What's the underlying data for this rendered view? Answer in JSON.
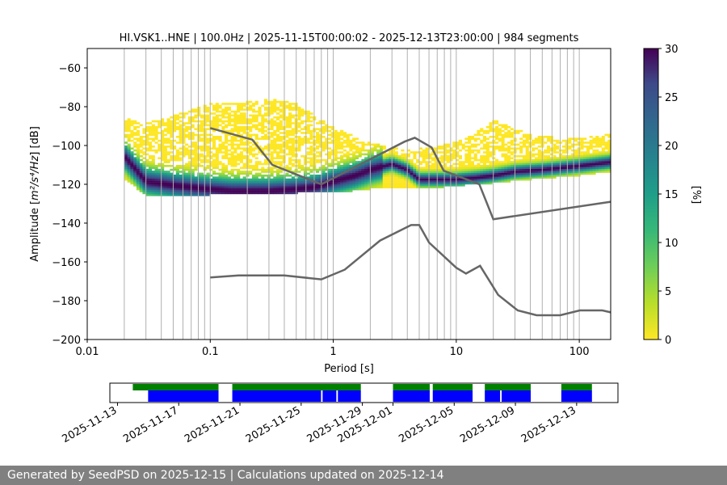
{
  "chart_data": {
    "type": "heatmap",
    "title": "HI.VSK1..HNE | 100.0Hz | 2025-11-15T00:00:02 - 2025-12-13T23:00:00 | 984 segments",
    "xlabel": "Period [s]",
    "ylabel_prefix": "Amplitude [",
    "ylabel_math": "m²/s⁴/Hz",
    "ylabel_suffix": "] [dB]",
    "x_scale": "log",
    "xlim": [
      0.01,
      180
    ],
    "ylim": [
      -200,
      -50
    ],
    "x_ticks": [
      0.01,
      0.1,
      1,
      10,
      100
    ],
    "x_tick_labels": [
      "0.01",
      "0.1",
      "1",
      "10",
      "100"
    ],
    "y_ticks": [
      -200,
      -180,
      -160,
      -140,
      -120,
      -100,
      -80,
      -60
    ],
    "y_tick_labels": [
      "−200",
      "−180",
      "−160",
      "−140",
      "−120",
      "−100",
      "−80",
      "−60"
    ],
    "grid": "vertical lines at period bins",
    "grid_periods": [
      0.02,
      0.03,
      0.04,
      0.05,
      0.06,
      0.07,
      0.08,
      0.09,
      0.1,
      0.2,
      0.3,
      0.4,
      0.5,
      0.6,
      0.7,
      0.8,
      0.9,
      1,
      2,
      3,
      4,
      5,
      6,
      7,
      8,
      9,
      10,
      20,
      30,
      40,
      50,
      60,
      70,
      80,
      90,
      100
    ],
    "colorbar": {
      "label": "[%]",
      "range": [
        0,
        30
      ],
      "ticks": [
        0,
        5,
        10,
        15,
        20,
        25,
        30
      ],
      "colormap": "viridis_r"
    },
    "mode_curve": {
      "x": [
        0.02,
        0.025,
        0.03,
        0.04,
        0.05,
        0.07,
        0.1,
        0.15,
        0.2,
        0.3,
        0.5,
        0.7,
        0.8,
        1,
        1.5,
        2,
        3,
        4,
        5,
        6,
        8,
        10,
        15,
        20,
        30,
        50,
        100,
        180
      ],
      "y": [
        -106,
        -113,
        -119,
        -120,
        -121,
        -122,
        -123,
        -124,
        -124,
        -124,
        -123,
        -122,
        -121,
        -119,
        -116,
        -113,
        -110,
        -113,
        -118,
        -118,
        -118,
        -118,
        -117,
        -116,
        -114,
        -113,
        -111,
        -109
      ]
    },
    "spread_upper": {
      "x": [
        0.02,
        0.03,
        0.05,
        0.1,
        0.2,
        0.3,
        0.5,
        1,
        2,
        4,
        8,
        12,
        20,
        40,
        100,
        180
      ],
      "y": [
        -87,
        -90,
        -86,
        -80,
        -79,
        -77,
        -80,
        -92,
        -100,
        -104,
        -101,
        -98,
        -88,
        -96,
        -98,
        -95
      ]
    },
    "spread_lower": {
      "x": [
        0.02,
        0.03,
        0.05,
        0.1,
        0.2,
        0.3,
        0.5,
        1,
        2,
        4,
        8,
        12,
        20,
        40,
        100,
        180
      ],
      "y": [
        -117,
        -125,
        -126,
        -125,
        -125,
        -125,
        -124,
        -124,
        -122,
        -122,
        -121,
        -120,
        -119,
        -117,
        -115,
        -113
      ]
    },
    "series": [
      {
        "style": "model",
        "x": [
          0.1,
          0.22,
          0.32,
          0.8,
          3.8,
          4.6,
          6.3,
          7.9,
          15.4,
          20,
          180
        ],
        "y": [
          -91,
          -97,
          -110,
          -120,
          -98,
          -96,
          -101,
          -113,
          -120,
          -138,
          -129
        ]
      },
      {
        "style": "model",
        "x": [
          0.1,
          0.17,
          0.4,
          0.8,
          1.24,
          2.4,
          4.3,
          5,
          6,
          10,
          12,
          15.6,
          21.9,
          31.6,
          45,
          70,
          101,
          154,
          180
        ],
        "y": [
          -168,
          -167,
          -167,
          -169,
          -164,
          -149,
          -141,
          -141,
          -150,
          -163,
          -166,
          -162,
          -177,
          -185,
          -187.5,
          -187.5,
          -185,
          -185,
          -186
        ]
      }
    ]
  },
  "timeline": {
    "date_labels": [
      "2025-11-13",
      "2025-11-17",
      "2025-11-21",
      "2025-11-25",
      "2025-11-29",
      "2025-12-01",
      "2025-12-05",
      "2025-12-09",
      "2025-12-13"
    ],
    "date_values": [
      "2025-11-13",
      "2025-11-17",
      "2025-11-21",
      "2025-11-25",
      "2025-11-29",
      "2025-12-01",
      "2025-12-05",
      "2025-12-09",
      "2025-12-13"
    ],
    "range": [
      "2025-11-12.5",
      "2025-12-15.7"
    ],
    "green_segments": [
      [
        "2025-11-14.0",
        "2025-11-19.6"
      ],
      [
        "2025-11-20.5",
        "2025-11-28.9"
      ],
      [
        "2025-12-01.0",
        "2025-12-03.4"
      ],
      [
        "2025-12-03.6",
        "2025-12-06.2"
      ],
      [
        "2025-12-07.0",
        "2025-12-10.0"
      ],
      [
        "2025-12-12.0",
        "2025-12-14.0"
      ]
    ],
    "blue_segments": [
      [
        "2025-11-15.0",
        "2025-11-19.6"
      ],
      [
        "2025-11-20.5",
        "2025-11-26.3"
      ],
      [
        "2025-11-26.4",
        "2025-11-27.3"
      ],
      [
        "2025-11-27.4",
        "2025-11-28.9"
      ],
      [
        "2025-12-01.0",
        "2025-12-03.4"
      ],
      [
        "2025-12-03.6",
        "2025-12-06.2"
      ],
      [
        "2025-12-07.0",
        "2025-12-08.0"
      ],
      [
        "2025-12-08.1",
        "2025-12-10.0"
      ],
      [
        "2025-12-12.0",
        "2025-12-14.0"
      ]
    ],
    "colors": {
      "green": "#008000",
      "blue": "#0000ff"
    }
  },
  "footer": {
    "text": "Generated by SeedPSD on 2025-12-15 | Calculations updated on 2025-12-14"
  }
}
